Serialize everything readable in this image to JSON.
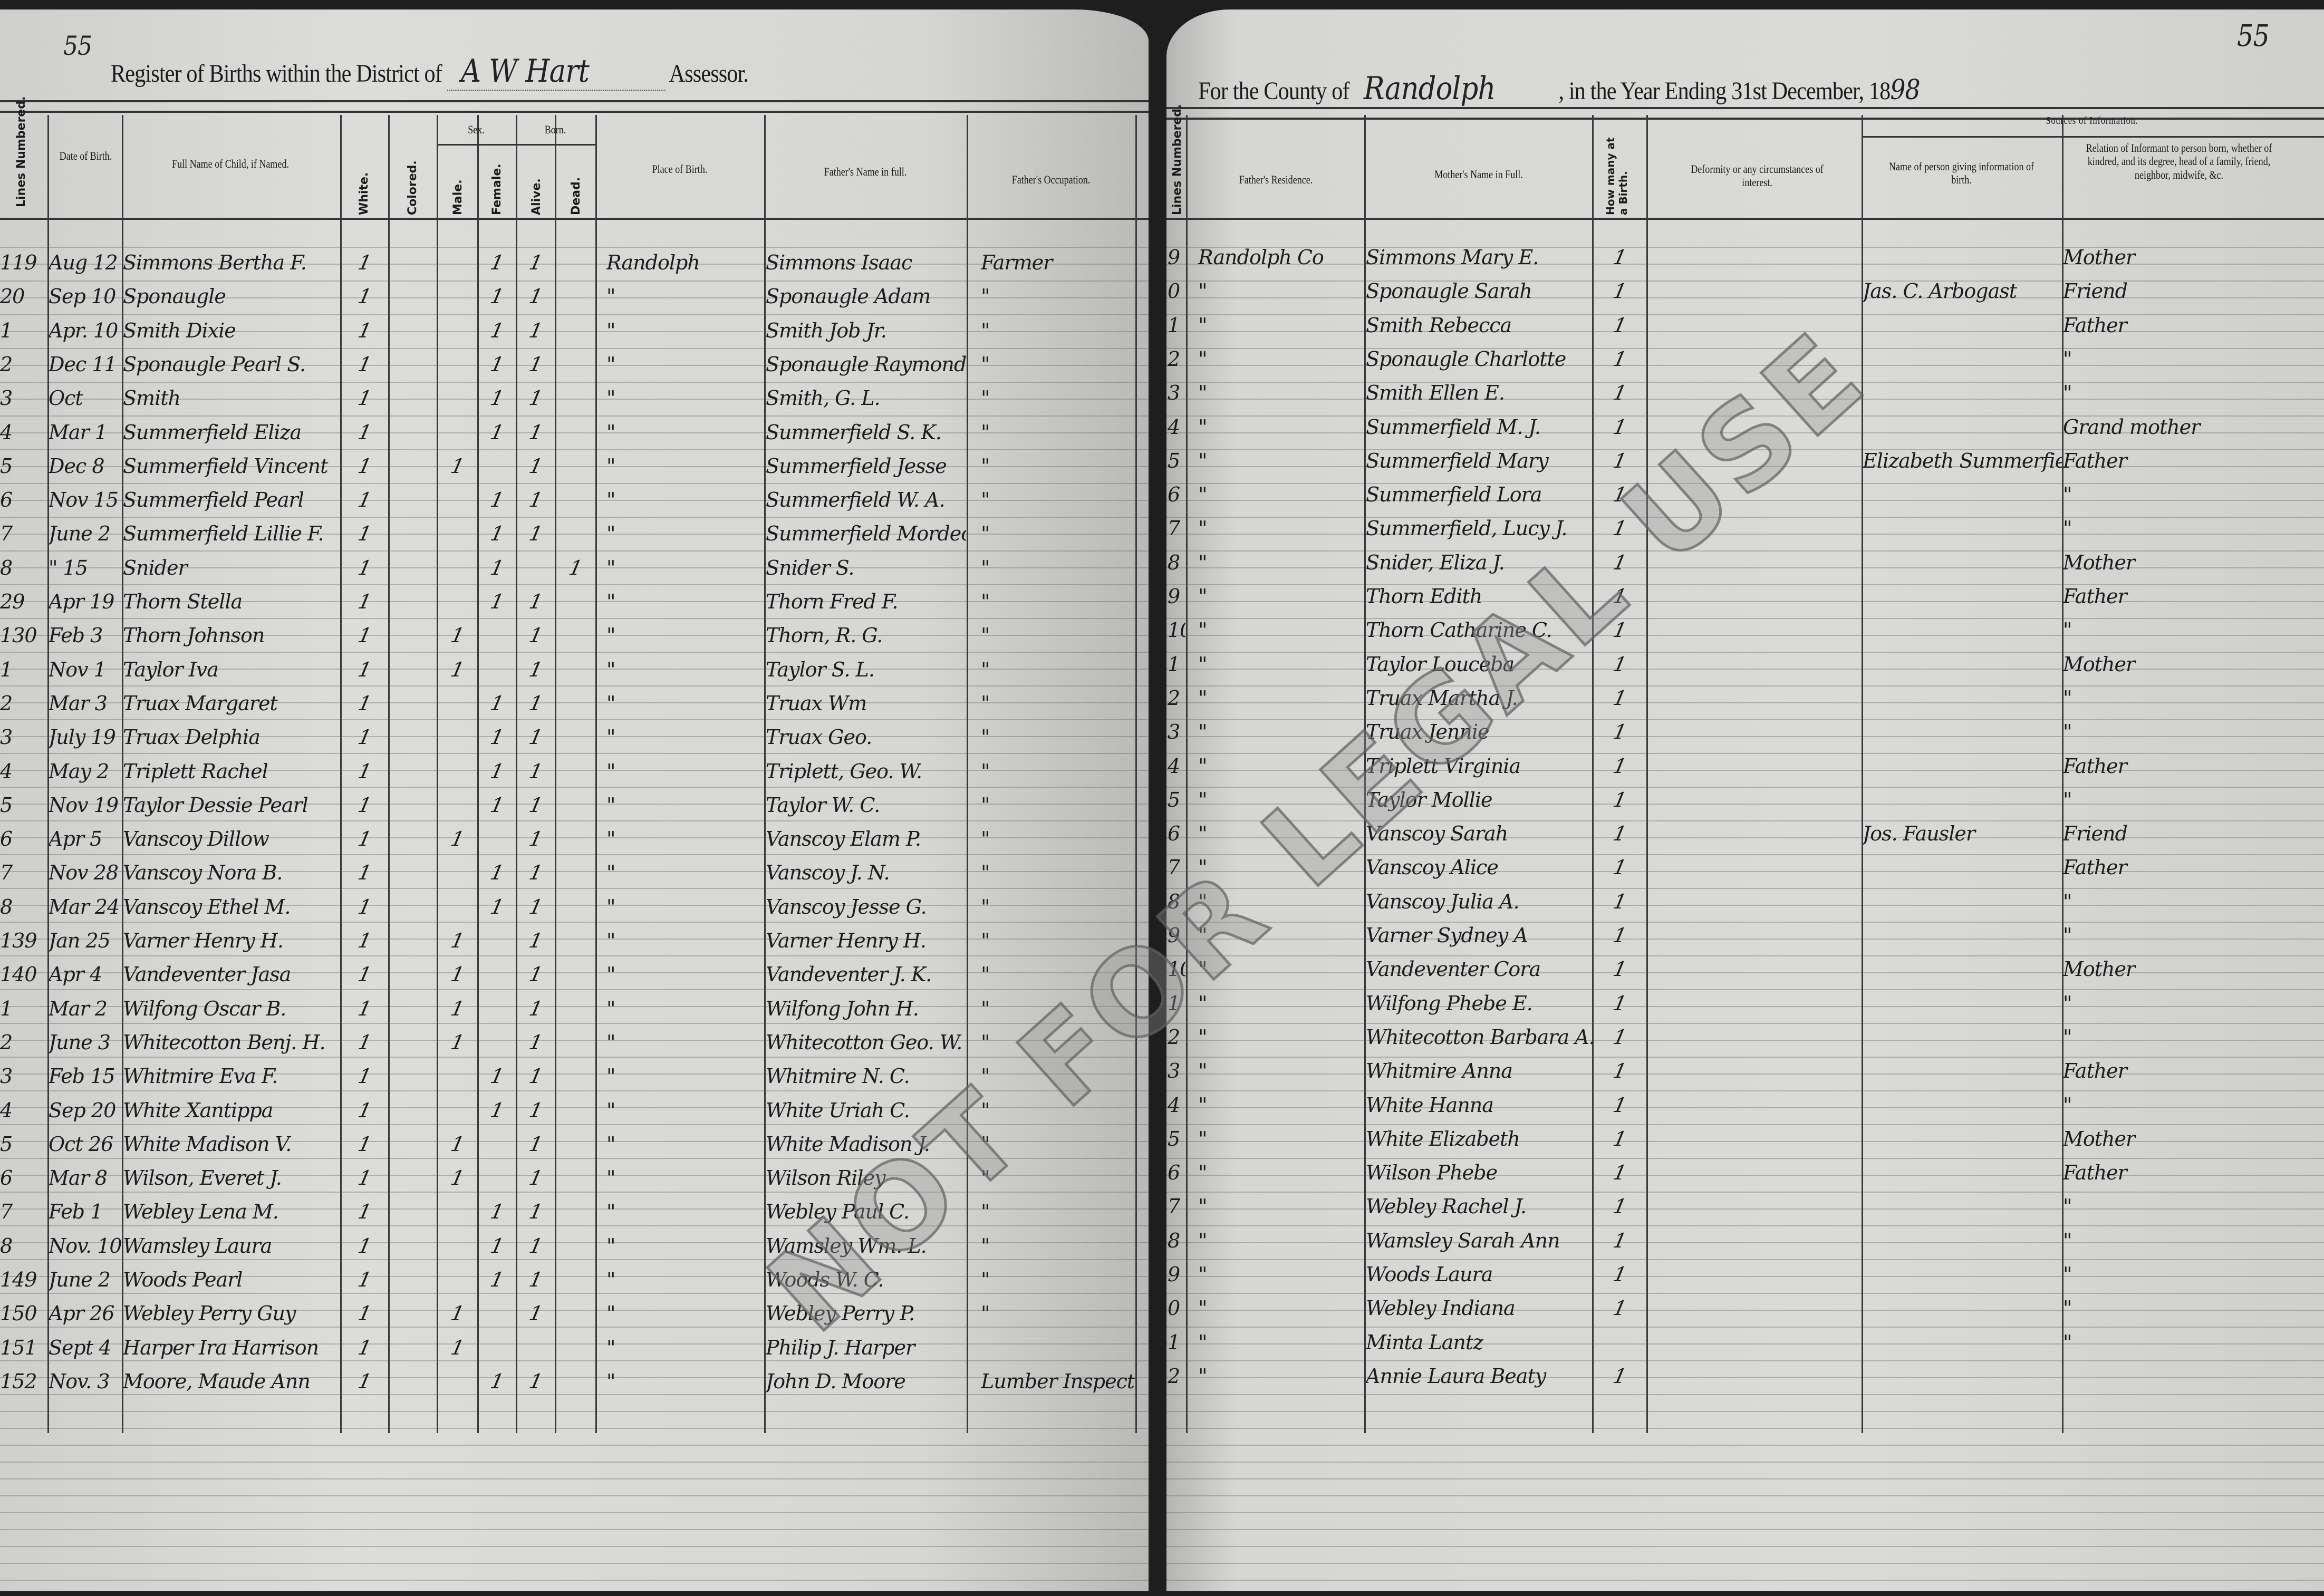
{
  "left": {
    "page_number": "55",
    "title_prefix": "Register of Births within the District of",
    "district": "A W Hart",
    "title_suffix": "Assessor.",
    "headers": {
      "lines_numbered": "Lines Numbered.",
      "date": "Date of Birth.",
      "name": "Full Name of Child, if Named.",
      "white": "White.",
      "colored": "Colored.",
      "sex": "Sex.",
      "male": "Male.",
      "female": "Female.",
      "born": "Born.",
      "alive": "Alive.",
      "dead": "Dead.",
      "place": "Place of Birth.",
      "father": "Father's Name in full.",
      "occupation": "Father's Occupation."
    },
    "rows": [
      {
        "n": "119",
        "date": "Aug 12",
        "name": "Simmons Bertha F.",
        "white": "1",
        "colored": "",
        "male": "",
        "female": "1",
        "alive": "1",
        "dead": "",
        "place": "Randolph",
        "father": "Simmons Isaac",
        "occ": "Farmer"
      },
      {
        "n": "20",
        "date": "Sep 10",
        "name": "Sponaugle",
        "white": "1",
        "colored": "",
        "male": "",
        "female": "1",
        "alive": "1",
        "dead": "",
        "place": "\"",
        "father": "Sponaugle Adam",
        "occ": "\""
      },
      {
        "n": "1",
        "date": "Apr. 10",
        "name": "Smith Dixie",
        "white": "1",
        "colored": "",
        "male": "",
        "female": "1",
        "alive": "1",
        "dead": "",
        "place": "\"",
        "father": "Smith Job Jr.",
        "occ": "\""
      },
      {
        "n": "2",
        "date": "Dec 11",
        "name": "Sponaugle Pearl S.",
        "white": "1",
        "colored": "",
        "male": "",
        "female": "1",
        "alive": "1",
        "dead": "",
        "place": "\"",
        "father": "Sponaugle Raymond",
        "occ": "\""
      },
      {
        "n": "3",
        "date": "Oct",
        "name": "Smith",
        "white": "1",
        "colored": "",
        "male": "",
        "female": "1",
        "alive": "1",
        "dead": "",
        "place": "\"",
        "father": "Smith, G. L.",
        "occ": "\""
      },
      {
        "n": "4",
        "date": "Mar 1",
        "name": "Summerfield Eliza",
        "white": "1",
        "colored": "",
        "male": "",
        "female": "1",
        "alive": "1",
        "dead": "",
        "place": "\"",
        "father": "Summerfield S. K.",
        "occ": "\""
      },
      {
        "n": "5",
        "date": "Dec 8",
        "name": "Summerfield Vincent",
        "white": "1",
        "colored": "",
        "male": "1",
        "female": "",
        "alive": "1",
        "dead": "",
        "place": "\"",
        "father": "Summerfield Jesse",
        "occ": "\""
      },
      {
        "n": "6",
        "date": "Nov 15",
        "name": "Summerfield Pearl",
        "white": "1",
        "colored": "",
        "male": "",
        "female": "1",
        "alive": "1",
        "dead": "",
        "place": "\"",
        "father": "Summerfield W. A.",
        "occ": "\""
      },
      {
        "n": "7",
        "date": "June 2",
        "name": "Summerfield Lillie F.",
        "white": "1",
        "colored": "",
        "male": "",
        "female": "1",
        "alive": "1",
        "dead": "",
        "place": "\"",
        "father": "Summerfield Mordecai",
        "occ": "\""
      },
      {
        "n": "8",
        "date": "\" 15",
        "name": "Snider",
        "white": "1",
        "colored": "",
        "male": "",
        "female": "1",
        "alive": "",
        "dead": "1",
        "place": "\"",
        "father": "Snider S.",
        "occ": "\""
      },
      {
        "n": "29",
        "date": "Apr 19",
        "name": "Thorn Stella",
        "white": "1",
        "colored": "",
        "male": "",
        "female": "1",
        "alive": "1",
        "dead": "",
        "place": "\"",
        "father": "Thorn Fred F.",
        "occ": "\""
      },
      {
        "n": "130",
        "date": "Feb 3",
        "name": "Thorn Johnson",
        "white": "1",
        "colored": "",
        "male": "1",
        "female": "",
        "alive": "1",
        "dead": "",
        "place": "\"",
        "father": "Thorn, R. G.",
        "occ": "\""
      },
      {
        "n": "1",
        "date": "Nov 1",
        "name": "Taylor Iva",
        "white": "1",
        "colored": "",
        "male": "1",
        "female": "",
        "alive": "1",
        "dead": "",
        "place": "\"",
        "father": "Taylor S. L.",
        "occ": "\""
      },
      {
        "n": "2",
        "date": "Mar 3",
        "name": "Truax Margaret",
        "white": "1",
        "colored": "",
        "male": "",
        "female": "1",
        "alive": "1",
        "dead": "",
        "place": "\"",
        "father": "Truax Wm",
        "occ": "\""
      },
      {
        "n": "3",
        "date": "July 19",
        "name": "Truax Delphia",
        "white": "1",
        "colored": "",
        "male": "",
        "female": "1",
        "alive": "1",
        "dead": "",
        "place": "\"",
        "father": "Truax Geo.",
        "occ": "\""
      },
      {
        "n": "4",
        "date": "May 2",
        "name": "Triplett Rachel",
        "white": "1",
        "colored": "",
        "male": "",
        "female": "1",
        "alive": "1",
        "dead": "",
        "place": "\"",
        "father": "Triplett, Geo. W.",
        "occ": "\""
      },
      {
        "n": "5",
        "date": "Nov 19",
        "name": "Taylor Dessie Pearl",
        "white": "1",
        "colored": "",
        "male": "",
        "female": "1",
        "alive": "1",
        "dead": "",
        "place": "\"",
        "father": "Taylor W. C.",
        "occ": "\""
      },
      {
        "n": "6",
        "date": "Apr 5",
        "name": "Vanscoy Dillow",
        "white": "1",
        "colored": "",
        "male": "1",
        "female": "",
        "alive": "1",
        "dead": "",
        "place": "\"",
        "father": "Vanscoy Elam P.",
        "occ": "\""
      },
      {
        "n": "7",
        "date": "Nov 28",
        "name": "Vanscoy Nora B.",
        "white": "1",
        "colored": "",
        "male": "",
        "female": "1",
        "alive": "1",
        "dead": "",
        "place": "\"",
        "father": "Vanscoy J. N.",
        "occ": "\""
      },
      {
        "n": "8",
        "date": "Mar 24",
        "name": "Vanscoy Ethel M.",
        "white": "1",
        "colored": "",
        "male": "",
        "female": "1",
        "alive": "1",
        "dead": "",
        "place": "\"",
        "father": "Vanscoy Jesse G.",
        "occ": "\""
      },
      {
        "n": "139",
        "date": "Jan 25",
        "name": "Varner Henry H.",
        "white": "1",
        "colored": "",
        "male": "1",
        "female": "",
        "alive": "1",
        "dead": "",
        "place": "\"",
        "father": "Varner Henry H.",
        "occ": "\""
      },
      {
        "n": "140",
        "date": "Apr 4",
        "name": "Vandeventer Jasa",
        "white": "1",
        "colored": "",
        "male": "1",
        "female": "",
        "alive": "1",
        "dead": "",
        "place": "\"",
        "father": "Vandeventer J. K.",
        "occ": "\""
      },
      {
        "n": "1",
        "date": "Mar 2",
        "name": "Wilfong Oscar B.",
        "white": "1",
        "colored": "",
        "male": "1",
        "female": "",
        "alive": "1",
        "dead": "",
        "place": "\"",
        "father": "Wilfong John H.",
        "occ": "\""
      },
      {
        "n": "2",
        "date": "June 3",
        "name": "Whitecotton Benj. H.",
        "white": "1",
        "colored": "",
        "male": "1",
        "female": "",
        "alive": "1",
        "dead": "",
        "place": "\"",
        "father": "Whitecotton Geo. W.",
        "occ": "\""
      },
      {
        "n": "3",
        "date": "Feb 15",
        "name": "Whitmire Eva F.",
        "white": "1",
        "colored": "",
        "male": "",
        "female": "1",
        "alive": "1",
        "dead": "",
        "place": "\"",
        "father": "Whitmire N. C.",
        "occ": "\""
      },
      {
        "n": "4",
        "date": "Sep 20",
        "name": "White Xantippa",
        "white": "1",
        "colored": "",
        "male": "",
        "female": "1",
        "alive": "1",
        "dead": "",
        "place": "\"",
        "father": "White Uriah C.",
        "occ": "\""
      },
      {
        "n": "5",
        "date": "Oct 26",
        "name": "White Madison V.",
        "white": "1",
        "colored": "",
        "male": "1",
        "female": "",
        "alive": "1",
        "dead": "",
        "place": "\"",
        "father": "White Madison J.",
        "occ": "\""
      },
      {
        "n": "6",
        "date": "Mar 8",
        "name": "Wilson, Everet J.",
        "white": "1",
        "colored": "",
        "male": "1",
        "female": "",
        "alive": "1",
        "dead": "",
        "place": "\"",
        "father": "Wilson Riley",
        "occ": "\""
      },
      {
        "n": "7",
        "date": "Feb 1",
        "name": "Webley Lena M.",
        "white": "1",
        "colored": "",
        "male": "",
        "female": "1",
        "alive": "1",
        "dead": "",
        "place": "\"",
        "father": "Webley Paul C.",
        "occ": "\""
      },
      {
        "n": "8",
        "date": "Nov. 10",
        "name": "Wamsley Laura",
        "white": "1",
        "colored": "",
        "male": "",
        "female": "1",
        "alive": "1",
        "dead": "",
        "place": "\"",
        "father": "Wamsley Wm. L.",
        "occ": "\""
      },
      {
        "n": "149",
        "date": "June 2",
        "name": "Woods Pearl",
        "white": "1",
        "colored": "",
        "male": "",
        "female": "1",
        "alive": "1",
        "dead": "",
        "place": "\"",
        "father": "Woods W. C.",
        "occ": "\""
      },
      {
        "n": "150",
        "date": "Apr 26",
        "name": "Webley Perry Guy",
        "white": "1",
        "colored": "",
        "male": "1",
        "female": "",
        "alive": "1",
        "dead": "",
        "place": "\"",
        "father": "Webley Perry P.",
        "occ": "\""
      },
      {
        "n": "151",
        "date": "Sept 4",
        "name": "Harper Ira Harrison",
        "white": "1",
        "colored": "",
        "male": "1",
        "female": "",
        "alive": "",
        "dead": "",
        "place": "\"",
        "father": "Philip J. Harper",
        "occ": ""
      },
      {
        "n": "152",
        "date": "Nov. 3",
        "name": "Moore, Maude Ann",
        "white": "1",
        "colored": "",
        "male": "",
        "female": "1",
        "alive": "1",
        "dead": "",
        "place": "\"",
        "father": "John D. Moore",
        "occ": "Lumber Inspector"
      }
    ]
  },
  "right": {
    "page_number": "55",
    "title_prefix": "For the County of",
    "county": "Randolph",
    "title_suffix": ", in the Year Ending 31st December, 18",
    "year_suffix": "98",
    "headers": {
      "lines_numbered": "Lines Numbered.",
      "residence": "Father's Residence.",
      "mother": "Mother's Name in Full.",
      "how_many": "How many at a Birth.",
      "deformity": "Deformity or any circumstances of interest.",
      "sources": "Sources of Information.",
      "informant": "Name of person giving information of birth.",
      "relation": "Relation of Informant to person born, whether of kindred, and its degree, head of a family, friend, neighbor, midwife, &c."
    },
    "rows": [
      {
        "n": "9",
        "res": "Randolph Co",
        "mother": "Simmons Mary E.",
        "count": "1",
        "deform": "",
        "informant": "",
        "relation": "Mother"
      },
      {
        "n": "0",
        "res": "\"",
        "mother": "Sponaugle Sarah",
        "count": "1",
        "deform": "",
        "informant": "Jas. C. Arbogast",
        "relation": "Friend"
      },
      {
        "n": "1",
        "res": "\"",
        "mother": "Smith Rebecca",
        "count": "1",
        "deform": "",
        "informant": "",
        "relation": "Father"
      },
      {
        "n": "2",
        "res": "\"",
        "mother": "Sponaugle Charlotte",
        "count": "1",
        "deform": "",
        "informant": "",
        "relation": "\""
      },
      {
        "n": "3",
        "res": "\"",
        "mother": "Smith Ellen E.",
        "count": "1",
        "deform": "",
        "informant": "",
        "relation": "\""
      },
      {
        "n": "4",
        "res": "\"",
        "mother": "Summerfield M. J.",
        "count": "1",
        "deform": "",
        "informant": "",
        "relation": "Grand mother"
      },
      {
        "n": "5",
        "res": "\"",
        "mother": "Summerfield Mary",
        "count": "1",
        "deform": "",
        "informant": "Elizabeth Summerfield",
        "relation": "Father"
      },
      {
        "n": "6",
        "res": "\"",
        "mother": "Summerfield Lora",
        "count": "1",
        "deform": "",
        "informant": "",
        "relation": "\""
      },
      {
        "n": "7",
        "res": "\"",
        "mother": "Summerfield, Lucy J.",
        "count": "1",
        "deform": "",
        "informant": "",
        "relation": "\""
      },
      {
        "n": "8",
        "res": "\"",
        "mother": "Snider, Eliza J.",
        "count": "1",
        "deform": "",
        "informant": "",
        "relation": "Mother"
      },
      {
        "n": "9",
        "res": "\"",
        "mother": "Thorn Edith",
        "count": "1",
        "deform": "",
        "informant": "",
        "relation": "Father"
      },
      {
        "n": "10",
        "res": "\"",
        "mother": "Thorn Catharine C.",
        "count": "1",
        "deform": "",
        "informant": "",
        "relation": "\""
      },
      {
        "n": "1",
        "res": "\"",
        "mother": "Taylor Louceba",
        "count": "1",
        "deform": "",
        "informant": "",
        "relation": "Mother"
      },
      {
        "n": "2",
        "res": "\"",
        "mother": "Truax Martha J.",
        "count": "1",
        "deform": "",
        "informant": "",
        "relation": "\""
      },
      {
        "n": "3",
        "res": "\"",
        "mother": "Truax Jennie",
        "count": "1",
        "deform": "",
        "informant": "",
        "relation": "\""
      },
      {
        "n": "4",
        "res": "\"",
        "mother": "Triplett Virginia",
        "count": "1",
        "deform": "",
        "informant": "",
        "relation": "Father"
      },
      {
        "n": "5",
        "res": "\"",
        "mother": "Taylor Mollie",
        "count": "1",
        "deform": "",
        "informant": "",
        "relation": "\""
      },
      {
        "n": "6",
        "res": "\"",
        "mother": "Vanscoy Sarah",
        "count": "1",
        "deform": "",
        "informant": "Jos. Fausler",
        "relation": "Friend"
      },
      {
        "n": "7",
        "res": "\"",
        "mother": "Vanscoy Alice",
        "count": "1",
        "deform": "",
        "informant": "",
        "relation": "Father"
      },
      {
        "n": "8",
        "res": "\"",
        "mother": "Vanscoy Julia A.",
        "count": "1",
        "deform": "",
        "informant": "",
        "relation": "\""
      },
      {
        "n": "9",
        "res": "\"",
        "mother": "Varner Sydney A",
        "count": "1",
        "deform": "",
        "informant": "",
        "relation": "\""
      },
      {
        "n": "10",
        "res": "\"",
        "mother": "Vandeventer Cora",
        "count": "1",
        "deform": "",
        "informant": "",
        "relation": "Mother"
      },
      {
        "n": "1",
        "res": "\"",
        "mother": "Wilfong Phebe E.",
        "count": "1",
        "deform": "",
        "informant": "",
        "relation": "\""
      },
      {
        "n": "2",
        "res": "\"",
        "mother": "Whitecotton Barbara A.",
        "count": "1",
        "deform": "",
        "informant": "",
        "relation": "\""
      },
      {
        "n": "3",
        "res": "\"",
        "mother": "Whitmire Anna",
        "count": "1",
        "deform": "",
        "informant": "",
        "relation": "Father"
      },
      {
        "n": "4",
        "res": "\"",
        "mother": "White Hanna",
        "count": "1",
        "deform": "",
        "informant": "",
        "relation": "\""
      },
      {
        "n": "5",
        "res": "\"",
        "mother": "White Elizabeth",
        "count": "1",
        "deform": "",
        "informant": "",
        "relation": "Mother"
      },
      {
        "n": "6",
        "res": "\"",
        "mother": "Wilson Phebe",
        "count": "1",
        "deform": "",
        "informant": "",
        "relation": "Father"
      },
      {
        "n": "7",
        "res": "\"",
        "mother": "Webley Rachel J.",
        "count": "1",
        "deform": "",
        "informant": "",
        "relation": "\""
      },
      {
        "n": "8",
        "res": "\"",
        "mother": "Wamsley Sarah Ann",
        "count": "1",
        "deform": "",
        "informant": "",
        "relation": "\""
      },
      {
        "n": "9",
        "res": "\"",
        "mother": "Woods Laura",
        "count": "1",
        "deform": "",
        "informant": "",
        "relation": "\""
      },
      {
        "n": "0",
        "res": "\"",
        "mother": "Webley Indiana",
        "count": "1",
        "deform": "",
        "informant": "",
        "relation": "\""
      },
      {
        "n": "1",
        "res": "\"",
        "mother": "Minta Lantz",
        "count": "",
        "deform": "",
        "informant": "",
        "relation": "\""
      },
      {
        "n": "2",
        "res": "\"",
        "mother": "Annie Laura Beaty",
        "count": "1",
        "deform": "",
        "informant": "",
        "relation": ""
      }
    ]
  },
  "watermark": "NOT FOR LEGAL USE",
  "colors": {
    "paper": "#d8d8d6",
    "ink": "#1c1c1c",
    "background": "#1e1e1e"
  }
}
